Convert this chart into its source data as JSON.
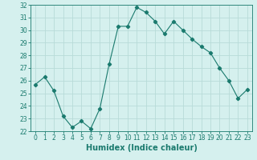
{
  "x": [
    0,
    1,
    2,
    3,
    4,
    5,
    6,
    7,
    8,
    9,
    10,
    11,
    12,
    13,
    14,
    15,
    16,
    17,
    18,
    19,
    20,
    21,
    22,
    23
  ],
  "y": [
    25.7,
    26.3,
    25.2,
    23.2,
    22.3,
    22.8,
    22.2,
    23.8,
    27.3,
    30.3,
    30.3,
    31.8,
    31.4,
    30.7,
    29.7,
    30.7,
    30.0,
    29.3,
    28.7,
    28.2,
    27.0,
    26.0,
    24.6,
    25.3
  ],
  "xlabel": "Humidex (Indice chaleur)",
  "ylabel": "",
  "ylim": [
    22,
    32
  ],
  "xlim": [
    -0.5,
    23.5
  ],
  "yticks": [
    22,
    23,
    24,
    25,
    26,
    27,
    28,
    29,
    30,
    31,
    32
  ],
  "xticks": [
    0,
    1,
    2,
    3,
    4,
    5,
    6,
    7,
    8,
    9,
    10,
    11,
    12,
    13,
    14,
    15,
    16,
    17,
    18,
    19,
    20,
    21,
    22,
    23
  ],
  "line_color": "#1a7a6e",
  "marker": "D",
  "marker_size": 2.2,
  "bg_color": "#d5f0ee",
  "grid_color": "#b8dbd8",
  "label_fontsize": 7,
  "tick_fontsize": 5.5
}
